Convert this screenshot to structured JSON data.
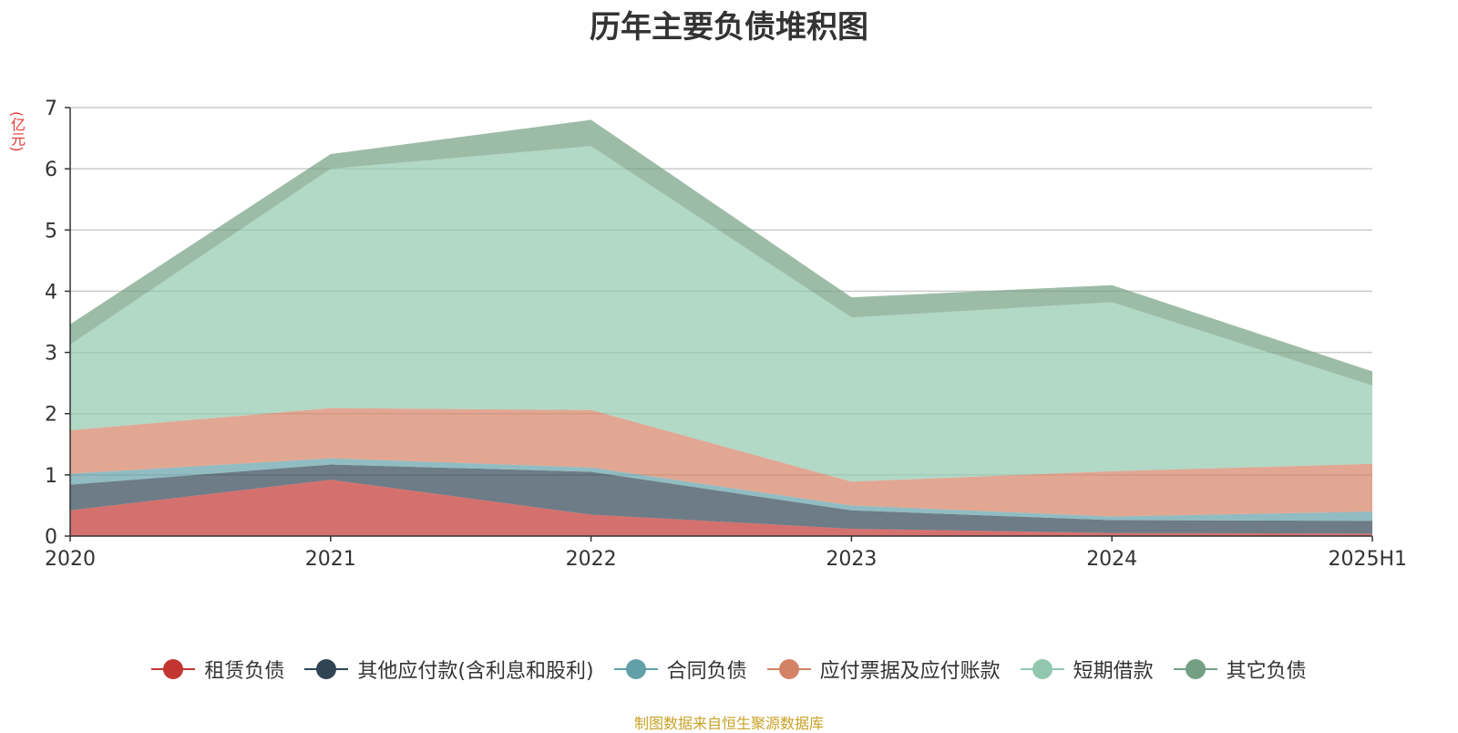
{
  "title": "历年主要负债堆积图",
  "unit_label": "(亿元)",
  "source": "制图数据来自恒生聚源数据库",
  "chart_data": {
    "type": "area",
    "stacked": true,
    "categories": [
      "2020",
      "2021",
      "2022",
      "2023",
      "2024",
      "2025H1"
    ],
    "ylim": [
      0,
      7
    ],
    "yticks": [
      "0",
      "1",
      "2",
      "3",
      "4",
      "5",
      "6",
      "7"
    ],
    "grid": true,
    "legend_position": "bottom",
    "series": [
      {
        "name": "租赁负债",
        "color": "#c23531",
        "values": [
          0.42,
          0.92,
          0.35,
          0.12,
          0.05,
          0.04
        ]
      },
      {
        "name": "其他应付款(含利息和股利)",
        "color": "#2f4554",
        "values": [
          0.42,
          0.25,
          0.7,
          0.3,
          0.21,
          0.21
        ]
      },
      {
        "name": "合同负债",
        "color": "#61a0a8",
        "values": [
          0.18,
          0.1,
          0.07,
          0.08,
          0.06,
          0.15
        ]
      },
      {
        "name": "应付票据及应付账款",
        "color": "#d48265",
        "values": [
          0.71,
          0.82,
          0.94,
          0.39,
          0.74,
          0.78
        ]
      },
      {
        "name": "短期借款",
        "color": "#91c7ae",
        "values": [
          1.4,
          3.91,
          4.31,
          2.68,
          2.76,
          1.28
        ]
      },
      {
        "name": "其它负债",
        "color": "#749f83",
        "values": [
          0.33,
          0.24,
          0.43,
          0.33,
          0.28,
          0.23
        ]
      }
    ]
  }
}
